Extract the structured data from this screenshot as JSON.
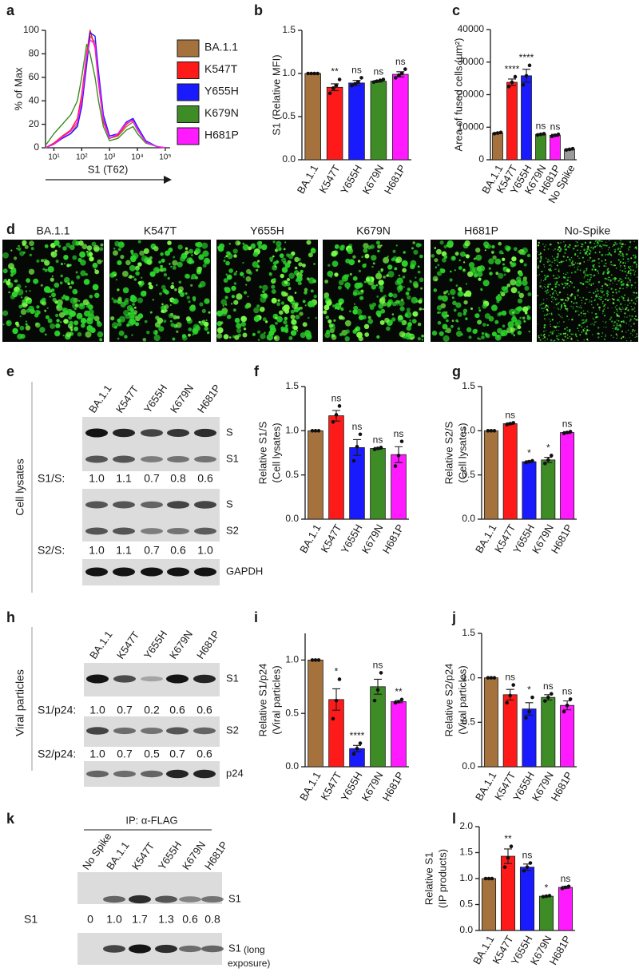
{
  "chart_data": [
    {
      "type": "line",
      "panel": "a",
      "ylabel": "% of Max",
      "xlabel": "S1 (T62)",
      "log_x": true,
      "x": [
        5,
        10,
        20,
        40,
        70,
        100,
        150,
        200,
        300,
        400,
        600,
        1000,
        2000,
        4000,
        7000,
        10000,
        20000,
        50000,
        100000
      ],
      "xlim": [
        5,
        150000
      ],
      "xticks": [
        {
          "value": 10,
          "label": "10¹"
        },
        {
          "value": 100,
          "label": "10²"
        },
        {
          "value": 1000,
          "label": "10³"
        },
        {
          "value": 10000,
          "label": "10⁴"
        },
        {
          "value": 100000,
          "label": "10⁵"
        }
      ],
      "ylim": [
        0,
        100
      ],
      "yticks": [
        0,
        20,
        40,
        60,
        80,
        100
      ],
      "series": [
        {
          "name": "BA.1.1",
          "color": "#a5723d",
          "values": [
            0,
            3,
            8,
            12,
            20,
            35,
            70,
            95,
            90,
            60,
            25,
            8,
            10,
            18,
            22,
            15,
            5,
            1,
            0
          ]
        },
        {
          "name": "K547T",
          "color": "#ff1a1a",
          "values": [
            0,
            4,
            10,
            15,
            25,
            45,
            80,
            100,
            85,
            55,
            22,
            8,
            11,
            20,
            24,
            16,
            5,
            1,
            0
          ]
        },
        {
          "name": "Y655H",
          "color": "#1a1aff",
          "values": [
            0,
            3,
            8,
            12,
            18,
            35,
            72,
            98,
            95,
            65,
            28,
            10,
            12,
            22,
            25,
            18,
            6,
            1,
            0
          ]
        },
        {
          "name": "K679N",
          "color": "#3d8c26",
          "values": [
            2,
            12,
            20,
            28,
            40,
            60,
            88,
            80,
            60,
            40,
            18,
            6,
            8,
            15,
            18,
            12,
            4,
            1,
            0
          ]
        },
        {
          "name": "H681P",
          "color": "#ff1aff",
          "values": [
            0,
            3,
            9,
            14,
            22,
            40,
            78,
            92,
            88,
            58,
            24,
            8,
            12,
            21,
            23,
            16,
            5,
            1,
            0
          ]
        }
      ]
    },
    {
      "type": "bar",
      "panel": "b",
      "ylabel": "S1 (Relative MFI)",
      "categories": [
        "BA.1.1",
        "K547T",
        "Y655H",
        "K679N",
        "H681P"
      ],
      "colors": [
        "#a5723d",
        "#ff1a1a",
        "#1a1aff",
        "#3d8c26",
        "#ff1aff"
      ],
      "values": [
        1.0,
        0.84,
        0.89,
        0.91,
        0.99
      ],
      "errors": [
        0,
        0.04,
        0.03,
        0.01,
        0.03
      ],
      "points": [
        [
          1,
          1,
          1,
          1
        ],
        [
          0.77,
          0.83,
          0.86,
          0.93
        ],
        [
          0.86,
          0.88,
          0.9,
          0.95
        ],
        [
          0.9,
          0.91,
          0.92,
          0.93
        ],
        [
          0.95,
          0.98,
          1.0,
          1.05
        ]
      ],
      "annotations": [
        null,
        "**",
        "ns",
        "ns",
        "ns"
      ],
      "ylim": [
        0,
        1.5
      ],
      "yticks": [
        {
          "value": 0,
          "label": "0.0"
        },
        0.5,
        {
          "value": 1,
          "label": "1.0"
        },
        1.5
      ]
    },
    {
      "type": "bar",
      "panel": "c",
      "ylabel": "Area of fused cells (µm²)",
      "categories": [
        "BA.1.1",
        "K547T",
        "Y655H",
        "K679N",
        "H681P",
        "No Spike"
      ],
      "colors": [
        "#a5723d",
        "#ff1a1a",
        "#1a1aff",
        "#3d8c26",
        "#ff1aff",
        "#9a9a9a"
      ],
      "values": [
        8200,
        23800,
        25800,
        7800,
        7500,
        3200
      ],
      "errors": [
        200,
        1000,
        2000,
        200,
        300,
        200
      ],
      "points": [
        [
          8000,
          8200,
          8400
        ],
        [
          22500,
          23800,
          25500
        ],
        [
          23000,
          25800,
          29000
        ],
        [
          7600,
          7800,
          8000
        ],
        [
          7200,
          7500,
          7800
        ],
        [
          3000,
          3200,
          3400
        ]
      ],
      "annotations": [
        null,
        "****",
        "****",
        "ns",
        "ns",
        null
      ],
      "ylim": [
        0,
        40000
      ],
      "yticks": [
        0,
        10000,
        20000,
        30000,
        40000
      ]
    },
    {
      "type": "bar",
      "panel": "f",
      "ylabel": [
        "Relative S1/S",
        "(Cell lysates)"
      ],
      "categories": [
        "BA.1.1",
        "K547T",
        "Y655H",
        "K679N",
        "H681P"
      ],
      "colors": [
        "#a5723d",
        "#ff1a1a",
        "#1a1aff",
        "#3d8c26",
        "#ff1aff"
      ],
      "values": [
        1.0,
        1.17,
        0.81,
        0.8,
        0.73
      ],
      "errors": [
        0,
        0.06,
        0.09,
        0.01,
        0.09
      ],
      "points": [
        [
          1,
          1,
          1
        ],
        [
          1.1,
          1.18,
          1.28
        ],
        [
          0.66,
          0.82,
          0.96
        ],
        [
          0.79,
          0.8,
          0.81
        ],
        [
          0.6,
          0.72,
          0.88
        ]
      ],
      "annotations": [
        null,
        "ns",
        "ns",
        "ns",
        "ns"
      ],
      "ylim": [
        0,
        1.5
      ],
      "yticks": [
        {
          "value": 0,
          "label": "0.0"
        },
        0.5,
        {
          "value": 1,
          "label": "1.0"
        },
        1.5
      ]
    },
    {
      "type": "bar",
      "panel": "g",
      "ylabel": [
        "Relative S2/S",
        "(Cell lysates)"
      ],
      "categories": [
        "BA.1.1",
        "K547T",
        "Y655H",
        "K679N",
        "H681P"
      ],
      "colors": [
        "#a5723d",
        "#ff1a1a",
        "#1a1aff",
        "#3d8c26",
        "#ff1aff"
      ],
      "values": [
        1.0,
        1.08,
        0.65,
        0.67,
        0.98
      ],
      "errors": [
        0,
        0.01,
        0.01,
        0.03,
        0.01
      ],
      "points": [
        [
          1,
          1,
          1
        ],
        [
          1.07,
          1.08,
          1.09
        ],
        [
          0.64,
          0.65,
          0.66
        ],
        [
          0.63,
          0.67,
          0.72
        ],
        [
          0.97,
          0.98,
          0.99
        ]
      ],
      "annotations": [
        null,
        "ns",
        "*",
        "*",
        "ns"
      ],
      "ylim": [
        0,
        1.5
      ],
      "yticks": [
        {
          "value": 0,
          "label": "0.0"
        },
        0.5,
        {
          "value": 1,
          "label": "1.0"
        },
        1.5
      ]
    },
    {
      "type": "bar",
      "panel": "i",
      "ylabel": [
        "Relative S1/p24",
        "(Viral particles)"
      ],
      "categories": [
        "BA.1.1",
        "K547T",
        "Y655H",
        "K679N",
        "H681P"
      ],
      "colors": [
        "#a5723d",
        "#ff1a1a",
        "#1a1aff",
        "#3d8c26",
        "#ff1aff"
      ],
      "values": [
        1.0,
        0.63,
        0.17,
        0.75,
        0.61
      ],
      "errors": [
        0,
        0.1,
        0.03,
        0.07,
        0.01
      ],
      "points": [
        [
          1,
          1,
          1
        ],
        [
          0.45,
          0.62,
          0.82
        ],
        [
          0.12,
          0.17,
          0.22
        ],
        [
          0.62,
          0.72,
          0.88
        ],
        [
          0.6,
          0.61,
          0.63
        ]
      ],
      "annotations": [
        null,
        "*",
        "****",
        "ns",
        "**"
      ],
      "ylim": [
        0,
        1.25
      ],
      "yticks": [
        {
          "value": 0,
          "label": "0.0"
        },
        0.5,
        {
          "value": 1,
          "label": "1.0"
        }
      ]
    },
    {
      "type": "bar",
      "panel": "j",
      "ylabel": [
        "Relative S2/p24",
        "(Viral particles)"
      ],
      "categories": [
        "BA.1.1",
        "K547T",
        "Y655H",
        "K679N",
        "H681P"
      ],
      "colors": [
        "#a5723d",
        "#ff1a1a",
        "#1a1aff",
        "#3d8c26",
        "#ff1aff"
      ],
      "values": [
        1.0,
        0.81,
        0.65,
        0.78,
        0.69
      ],
      "errors": [
        0,
        0.06,
        0.07,
        0.03,
        0.05
      ],
      "points": [
        [
          1,
          1,
          1
        ],
        [
          0.72,
          0.8,
          0.92
        ],
        [
          0.55,
          0.62,
          0.78
        ],
        [
          0.74,
          0.78,
          0.82
        ],
        [
          0.62,
          0.69,
          0.76
        ]
      ],
      "annotations": [
        null,
        "ns",
        "*",
        "ns",
        "ns"
      ],
      "ylim": [
        0,
        1.5
      ],
      "yticks": [
        {
          "value": 0,
          "label": "0.0"
        },
        0.5,
        {
          "value": 1,
          "label": "1.0"
        },
        1.5
      ]
    },
    {
      "type": "bar",
      "panel": "l",
      "ylabel": [
        "Relative S1",
        "(IP products)"
      ],
      "categories": [
        "BA.1.1",
        "K547T",
        "Y655H",
        "K679N",
        "H681P"
      ],
      "colors": [
        "#a5723d",
        "#ff1a1a",
        "#1a1aff",
        "#3d8c26",
        "#ff1aff"
      ],
      "values": [
        1.0,
        1.43,
        1.22,
        0.66,
        0.83
      ],
      "errors": [
        0,
        0.14,
        0.06,
        0.01,
        0.02
      ],
      "points": [
        [
          1,
          1,
          1
        ],
        [
          1.22,
          1.4,
          1.62
        ],
        [
          1.15,
          1.22,
          1.3
        ],
        [
          0.65,
          0.66,
          0.67
        ],
        [
          0.81,
          0.83,
          0.85
        ]
      ],
      "annotations": [
        null,
        "**",
        "ns",
        "*",
        "ns"
      ],
      "ylim": [
        0,
        2.0
      ],
      "yticks": [
        {
          "value": 0,
          "label": "0.0"
        },
        0.5,
        {
          "value": 1,
          "label": "1.0"
        },
        1.5,
        {
          "value": 2,
          "label": "2.0"
        }
      ]
    }
  ],
  "microscopy": {
    "panel": "d",
    "labels": [
      "BA.1.1",
      "K547T",
      "Y655H",
      "K679N",
      "H681P",
      "No-Spike"
    ]
  },
  "cell_lysates": {
    "panel": "e",
    "section": "Cell lysates",
    "lanes": [
      "BA.1.1",
      "K547T",
      "Y655H",
      "K679N",
      "H681P"
    ],
    "blots": [
      {
        "bands": [
          "S",
          "S1"
        ],
        "ratio_label": "S1/S:",
        "ratios": [
          "1.0",
          "1.1",
          "0.7",
          "0.8",
          "0.6"
        ]
      },
      {
        "bands": [
          "S",
          "S2"
        ],
        "ratio_label": "S2/S:",
        "ratios": [
          "1.0",
          "1.1",
          "0.7",
          "0.6",
          "1.0"
        ]
      },
      {
        "bands": [
          "GAPDH"
        ]
      }
    ]
  },
  "viral_particles": {
    "panel": "h",
    "section": "Viral particles",
    "lanes": [
      "BA.1.1",
      "K547T",
      "Y655H",
      "K679N",
      "H681P"
    ],
    "blots": [
      {
        "bands": [
          "S1"
        ],
        "ratio_label": "S1/p24:",
        "ratios": [
          "1.0",
          "0.7",
          "0.2",
          "0.6",
          "0.6"
        ],
        "ratio_colors": [
          "#1a1a1a",
          "#1a1a1a",
          "#d42020",
          "#1a1a1a",
          "#1a1a1a"
        ]
      },
      {
        "bands": [
          "S2"
        ],
        "ratio_label": "S2/p24:",
        "ratios": [
          "1.0",
          "0.7",
          "0.5",
          "0.7",
          "0.6"
        ]
      },
      {
        "bands": [
          "p24"
        ]
      }
    ]
  },
  "ip": {
    "panel": "k",
    "header": "IP: α-FLAG",
    "lanes": [
      "No Spike",
      "BA.1.1",
      "K547T",
      "Y655H",
      "K679N",
      "H681P"
    ],
    "blots": [
      {
        "bands": [
          "S1"
        ],
        "ratio_label": "S1",
        "ratios": [
          "0",
          "1.0",
          "1.7",
          "1.3",
          "0.6",
          "0.8"
        ],
        "ratio_colors": [
          "#1a1a1a",
          "#1a1a1a",
          "#2f6fc0",
          "#2f6fc0",
          "#d42020",
          "#1a1a1a"
        ]
      },
      {
        "bands": [
          "S1"
        ],
        "note": [
          "(long",
          "exposure)"
        ]
      }
    ]
  }
}
